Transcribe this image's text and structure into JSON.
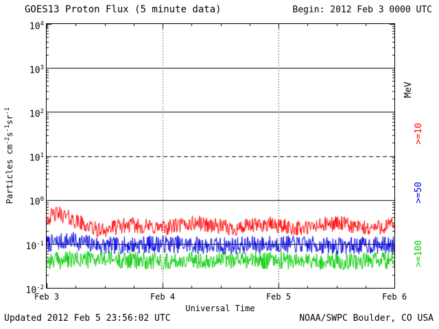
{
  "page": {
    "title": "GOES13 Proton Flux (5 minute data)",
    "begin_label": "Begin: 2012 Feb 3 0000 UTC",
    "updated_label": "Updated 2012 Feb  5 23:56:02 UTC",
    "credit_label": "NOAA/SWPC Boulder, CO USA"
  },
  "chart_data": {
    "type": "line",
    "title": "GOES13 Proton Flux (5 minute data)",
    "xlabel": "Universal Time",
    "ylabel_parts": {
      "t1": "Particles cm",
      "e1": "-2",
      "t2": "s",
      "e2": "-1",
      "t3": "sr",
      "e3": "-1"
    },
    "y_scale": "log",
    "y_exp_range": [
      -2,
      4
    ],
    "y_ticks": [
      {
        "base": "10",
        "exp": "4"
      },
      {
        "base": "10",
        "exp": "3"
      },
      {
        "base": "10",
        "exp": "2"
      },
      {
        "base": "10",
        "exp": "1"
      },
      {
        "base": "10",
        "exp": "0"
      },
      {
        "base": "10",
        "exp": "-1"
      },
      {
        "base": "10",
        "exp": "-2"
      }
    ],
    "x_range_days": [
      0,
      3
    ],
    "x_ticks": [
      {
        "label": "Feb 3",
        "day": 0
      },
      {
        "label": "Feb 4",
        "day": 1
      },
      {
        "label": "Feb 5",
        "day": 2
      },
      {
        "label": "Feb 6",
        "day": 3
      }
    ],
    "grid": {
      "solid_exps": [
        3,
        2,
        0,
        -1
      ],
      "dashed_exps": [
        1
      ],
      "vertical_dotted_days": [
        1,
        2
      ]
    },
    "right_labels": [
      {
        "text": "MeV",
        "color": "#000000"
      },
      {
        "text": ">=10",
        "color": "#ff0000"
      },
      {
        "text": ">=50",
        "color": "#0000dd"
      },
      {
        "text": ">=100",
        "color": "#00cc00"
      }
    ],
    "samples_per_series": 640,
    "series": [
      {
        "name": ">=100 MeV",
        "color": "#00cc00",
        "noise_decades": 0.2,
        "seed": 99,
        "anchors": [
          [
            0,
            0.042
          ],
          [
            0.5,
            0.045
          ],
          [
            1.0,
            0.04
          ],
          [
            1.5,
            0.045
          ],
          [
            2.0,
            0.042
          ],
          [
            2.5,
            0.04
          ],
          [
            3.0,
            0.042
          ]
        ]
      },
      {
        "name": ">=50 MeV",
        "color": "#0000dd",
        "noise_decades": 0.2,
        "seed": 7,
        "anchors": [
          [
            0,
            0.1
          ],
          [
            0.2,
            0.12
          ],
          [
            0.5,
            0.09
          ],
          [
            1.0,
            0.1
          ],
          [
            1.5,
            0.09
          ],
          [
            2.0,
            0.1
          ],
          [
            2.5,
            0.09
          ],
          [
            3.0,
            0.095
          ]
        ]
      },
      {
        "name": ">=10 MeV",
        "color": "#ff0000",
        "noise_decades": 0.18,
        "seed": 42,
        "anchors": [
          [
            0,
            0.38
          ],
          [
            0.1,
            0.5
          ],
          [
            0.25,
            0.33
          ],
          [
            0.45,
            0.2
          ],
          [
            0.7,
            0.27
          ],
          [
            1.0,
            0.23
          ],
          [
            1.3,
            0.3
          ],
          [
            1.6,
            0.22
          ],
          [
            1.9,
            0.28
          ],
          [
            2.2,
            0.22
          ],
          [
            2.5,
            0.3
          ],
          [
            2.75,
            0.22
          ],
          [
            3.0,
            0.27
          ]
        ]
      }
    ]
  }
}
